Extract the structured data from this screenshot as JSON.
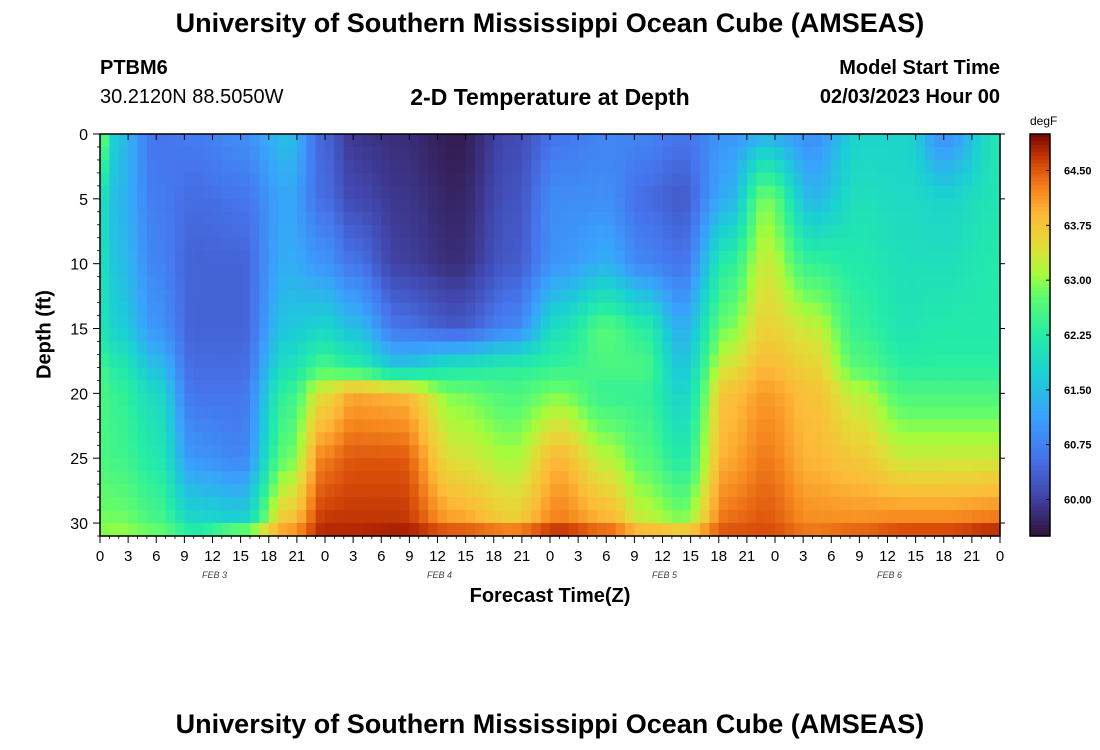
{
  "page": {
    "title": "University of Southern Mississippi Ocean Cube (AMSEAS)",
    "footer_title": "University of Southern Mississippi Ocean Cube (AMSEAS)"
  },
  "station": {
    "id": "PTBM6",
    "coords": "30.2120N  88.5050W"
  },
  "model": {
    "start_label": "Model Start Time",
    "start_value": "02/03/2023 Hour 00"
  },
  "chart_data": {
    "type": "heatmap",
    "title": "2-D Temperature at Depth",
    "xlabel": "Forecast Time(Z)",
    "ylabel": "Depth (ft)",
    "x_tick_labels": [
      "0",
      "3",
      "6",
      "9",
      "12",
      "15",
      "18",
      "21",
      "0",
      "3",
      "6",
      "9",
      "12",
      "15",
      "18",
      "21",
      "0",
      "3",
      "6",
      "9",
      "12",
      "15",
      "18",
      "21",
      "0",
      "3",
      "6",
      "9",
      "12",
      "15",
      "18",
      "21",
      "0"
    ],
    "x_range_hours": [
      0,
      96
    ],
    "date_labels": [
      {
        "label": "FEB 3",
        "hour": 12
      },
      {
        "label": "FEB 4",
        "hour": 36
      },
      {
        "label": "FEB 5",
        "hour": 60
      },
      {
        "label": "FEB 6",
        "hour": 84
      }
    ],
    "y_ticks": [
      0,
      5,
      10,
      15,
      20,
      25,
      30
    ],
    "y_range_ft": [
      0,
      31
    ],
    "colorbar": {
      "unit": "degF",
      "range": [
        59.5,
        65.0
      ],
      "ticks": [
        "64.50",
        "63.75",
        "63.00",
        "62.25",
        "61.50",
        "60.75",
        "60.00"
      ]
    },
    "field_anchors": {
      "depths_ft": [
        0,
        5,
        10,
        15,
        18,
        20,
        25,
        30,
        31
      ],
      "columns": [
        {
          "hour": 0,
          "temps": [
            62.9,
            62.0,
            62.0,
            62.1,
            62.5,
            62.6,
            62.6,
            62.9,
            63.0
          ]
        },
        {
          "hour": 2,
          "temps": [
            61.5,
            61.4,
            61.5,
            61.7,
            62.2,
            62.4,
            62.5,
            62.9,
            63.1
          ]
        },
        {
          "hour": 6,
          "temps": [
            60.6,
            60.7,
            60.8,
            61.0,
            61.5,
            61.9,
            62.2,
            62.6,
            63.0
          ]
        },
        {
          "hour": 10,
          "temps": [
            60.7,
            60.5,
            60.4,
            60.4,
            60.5,
            60.6,
            61.0,
            61.9,
            62.5
          ]
        },
        {
          "hour": 15,
          "temps": [
            60.9,
            60.6,
            60.4,
            60.4,
            60.5,
            60.6,
            60.8,
            61.8,
            63.6
          ]
        },
        {
          "hour": 20,
          "temps": [
            61.5,
            61.2,
            61.3,
            61.6,
            62.0,
            62.4,
            62.8,
            63.8,
            64.3
          ]
        },
        {
          "hour": 24,
          "temps": [
            60.4,
            60.5,
            61.0,
            61.8,
            62.6,
            63.5,
            64.3,
            64.7,
            64.8
          ]
        },
        {
          "hour": 27,
          "temps": [
            59.9,
            60.1,
            60.6,
            61.5,
            62.3,
            64.0,
            64.5,
            64.7,
            64.8
          ]
        },
        {
          "hour": 32,
          "temps": [
            59.8,
            59.9,
            60.0,
            60.6,
            61.6,
            63.9,
            64.5,
            64.7,
            64.9
          ]
        },
        {
          "hour": 38,
          "temps": [
            59.6,
            59.7,
            59.8,
            60.3,
            62.1,
            62.9,
            63.4,
            64.1,
            64.8
          ]
        },
        {
          "hour": 44,
          "temps": [
            60.1,
            60.2,
            60.3,
            60.8,
            62.3,
            62.6,
            63.1,
            63.7,
            64.8
          ]
        },
        {
          "hour": 49,
          "temps": [
            60.6,
            60.9,
            61.0,
            62.0,
            62.4,
            62.9,
            63.9,
            64.3,
            65.0
          ]
        },
        {
          "hour": 54,
          "temps": [
            60.8,
            60.9,
            61.3,
            62.7,
            62.6,
            62.4,
            63.2,
            64.0,
            64.7
          ]
        },
        {
          "hour": 58,
          "temps": [
            60.8,
            60.5,
            60.8,
            62.3,
            62.6,
            62.4,
            62.7,
            63.3,
            64.4
          ]
        },
        {
          "hour": 62,
          "temps": [
            60.6,
            60.3,
            60.6,
            61.3,
            61.6,
            61.8,
            62.2,
            63.0,
            64.3
          ]
        },
        {
          "hour": 67,
          "temps": [
            61.0,
            61.3,
            62.3,
            62.9,
            63.4,
            63.8,
            64.0,
            64.4,
            64.6
          ]
        },
        {
          "hour": 71,
          "temps": [
            61.3,
            62.9,
            63.3,
            63.6,
            63.9,
            64.1,
            64.3,
            64.5,
            64.6
          ]
        },
        {
          "hour": 76,
          "temps": [
            60.9,
            61.4,
            62.4,
            63.3,
            63.6,
            63.8,
            63.9,
            64.2,
            64.4
          ]
        },
        {
          "hour": 81,
          "temps": [
            61.8,
            62.0,
            62.2,
            62.4,
            62.7,
            63.2,
            63.7,
            64.2,
            64.6
          ]
        },
        {
          "hour": 86,
          "temps": [
            61.8,
            61.9,
            62.0,
            62.1,
            62.3,
            62.6,
            63.3,
            64.3,
            64.8
          ]
        },
        {
          "hour": 90,
          "temps": [
            60.9,
            61.8,
            62.0,
            62.2,
            62.3,
            62.6,
            63.3,
            64.3,
            64.8
          ]
        },
        {
          "hour": 96,
          "temps": [
            62.1,
            62.1,
            62.2,
            62.2,
            62.3,
            62.6,
            63.3,
            64.4,
            65.0
          ]
        }
      ]
    }
  }
}
